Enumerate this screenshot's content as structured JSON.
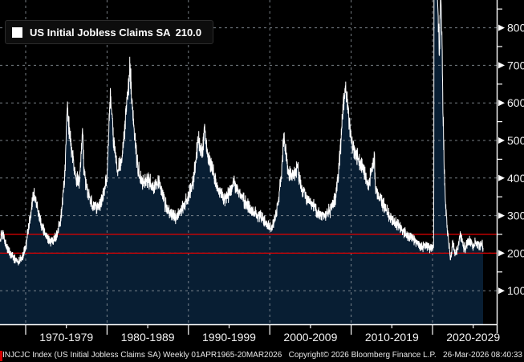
{
  "legend": {
    "label": "US Initial Jobless Claims SA",
    "value": "210.0"
  },
  "statusbar": {
    "left": "INJCJC Index (US Initial Jobless Claims SA) Weekly 01APR1965-20MAR2026",
    "copyright": "Copyright© 2026 Bloomberg Finance L.P.",
    "timestamp": "26-Mar-2026 08:40:33"
  },
  "colors": {
    "background": "#000000",
    "area_fill": "#081e33",
    "line": "#ffffff",
    "grid": "#8c949c",
    "reference_line": "#e10000",
    "axis": "#ffffff",
    "label": "#f2f2f2"
  },
  "chart_data": {
    "type": "area",
    "title": "US Initial Jobless Claims SA",
    "last_value": 210.0,
    "frequency": "Weekly",
    "period": "01APR1965-20MAR2026",
    "x_range": [
      1966.83,
      2026.22
    ],
    "ylim": [
      0,
      874
    ],
    "y_ticks": [
      100,
      200,
      300,
      400,
      500,
      600,
      700,
      800
    ],
    "y_minor_ticks": [
      150,
      250,
      350,
      450,
      550,
      650,
      750,
      850
    ],
    "x_decade_ticks": [
      1970,
      1980,
      1990,
      2000,
      2010,
      2020
    ],
    "x_minor_ticks": [
      1975,
      1985,
      1995,
      2005,
      2015,
      2025
    ],
    "x_tick_labels": [
      "1970-1979",
      "1980-1989",
      "1990-1999",
      "2000-2009",
      "2010-2019",
      "2020-2029"
    ],
    "reference_lines": [
      {
        "value": 250,
        "color": "#e10000"
      },
      {
        "value": 200,
        "color": "#e10000"
      }
    ],
    "grid": true,
    "legend_position": "top-left",
    "series": [
      {
        "name": "US Initial Jobless Claims SA",
        "color": "#ffffff",
        "fill": "#081e33",
        "anchors": [
          [
            1966.83,
            235
          ],
          [
            1967.2,
            255
          ],
          [
            1967.6,
            220
          ],
          [
            1968.1,
            200
          ],
          [
            1968.6,
            185
          ],
          [
            1969.1,
            180
          ],
          [
            1969.6,
            190
          ],
          [
            1970.0,
            215
          ],
          [
            1970.5,
            290
          ],
          [
            1971.0,
            360
          ],
          [
            1971.5,
            310
          ],
          [
            1972.0,
            270
          ],
          [
            1972.6,
            245
          ],
          [
            1973.2,
            230
          ],
          [
            1973.8,
            245
          ],
          [
            1974.3,
            290
          ],
          [
            1974.8,
            400
          ],
          [
            1975.1,
            580
          ],
          [
            1975.5,
            500
          ],
          [
            1976.0,
            420
          ],
          [
            1976.6,
            380
          ],
          [
            1977.0,
            520
          ],
          [
            1977.15,
            420
          ],
          [
            1977.6,
            360
          ],
          [
            1978.2,
            330
          ],
          [
            1978.8,
            325
          ],
          [
            1979.4,
            340
          ],
          [
            1980.0,
            400
          ],
          [
            1980.4,
            630
          ],
          [
            1980.8,
            500
          ],
          [
            1981.3,
            420
          ],
          [
            1981.8,
            450
          ],
          [
            1982.3,
            560
          ],
          [
            1982.8,
            700
          ],
          [
            1983.2,
            560
          ],
          [
            1983.7,
            440
          ],
          [
            1984.3,
            385
          ],
          [
            1985.0,
            395
          ],
          [
            1985.7,
            375
          ],
          [
            1986.4,
            390
          ],
          [
            1987.1,
            330
          ],
          [
            1987.8,
            305
          ],
          [
            1988.5,
            295
          ],
          [
            1989.2,
            320
          ],
          [
            1989.9,
            345
          ],
          [
            1990.6,
            390
          ],
          [
            1991.2,
            505
          ],
          [
            1991.7,
            460
          ],
          [
            1992.0,
            540
          ],
          [
            1992.3,
            460
          ],
          [
            1993.0,
            420
          ],
          [
            1993.7,
            370
          ],
          [
            1994.4,
            345
          ],
          [
            1995.1,
            360
          ],
          [
            1995.6,
            390
          ],
          [
            1996.1,
            365
          ],
          [
            1996.8,
            340
          ],
          [
            1997.5,
            320
          ],
          [
            1998.2,
            305
          ],
          [
            1998.9,
            295
          ],
          [
            1999.6,
            280
          ],
          [
            2000.3,
            265
          ],
          [
            2000.9,
            320
          ],
          [
            2001.4,
            400
          ],
          [
            2001.75,
            520
          ],
          [
            2002.2,
            420
          ],
          [
            2002.9,
            410
          ],
          [
            2003.4,
            430
          ],
          [
            2003.9,
            370
          ],
          [
            2004.6,
            345
          ],
          [
            2005.3,
            330
          ],
          [
            2006.0,
            305
          ],
          [
            2006.8,
            300
          ],
          [
            2007.5,
            315
          ],
          [
            2008.1,
            350
          ],
          [
            2008.6,
            450
          ],
          [
            2009.0,
            580
          ],
          [
            2009.3,
            650
          ],
          [
            2009.8,
            540
          ],
          [
            2010.3,
            475
          ],
          [
            2010.9,
            450
          ],
          [
            2011.5,
            420
          ],
          [
            2012.1,
            385
          ],
          [
            2012.85,
            450
          ],
          [
            2013.0,
            370
          ],
          [
            2013.6,
            345
          ],
          [
            2014.3,
            315
          ],
          [
            2015.0,
            285
          ],
          [
            2015.7,
            275
          ],
          [
            2016.4,
            260
          ],
          [
            2017.1,
            245
          ],
          [
            2017.8,
            235
          ],
          [
            2018.5,
            215
          ],
          [
            2019.2,
            220
          ],
          [
            2019.8,
            215
          ],
          [
            2020.15,
            220
          ],
          [
            2020.25,
            3000
          ],
          [
            2020.45,
            1400
          ],
          [
            2020.6,
            880
          ],
          [
            2020.75,
            800
          ],
          [
            2020.85,
            745
          ],
          [
            2021.0,
            900
          ],
          [
            2021.15,
            790
          ],
          [
            2021.3,
            560
          ],
          [
            2021.45,
            420
          ],
          [
            2021.6,
            330
          ],
          [
            2021.8,
            270
          ],
          [
            2022.0,
            225
          ],
          [
            2022.2,
            185
          ],
          [
            2022.5,
            230
          ],
          [
            2022.8,
            200
          ],
          [
            2023.1,
            215
          ],
          [
            2023.4,
            250
          ],
          [
            2023.7,
            225
          ],
          [
            2024.0,
            212
          ],
          [
            2024.4,
            235
          ],
          [
            2024.7,
            228
          ],
          [
            2025.0,
            215
          ],
          [
            2025.3,
            232
          ],
          [
            2025.6,
            222
          ],
          [
            2025.9,
            218
          ],
          [
            2026.1,
            225
          ],
          [
            2026.22,
            210
          ]
        ]
      }
    ]
  }
}
